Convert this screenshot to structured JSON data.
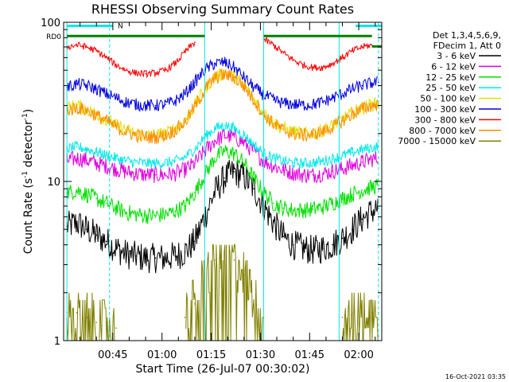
{
  "chart_data": {
    "type": "line",
    "title": "RHESSI Observing Summary Count Rates",
    "xlabel": "Start Time (26-Jul-07 00:30:02)",
    "ylabel_main": "Count Rate (s",
    "ylabel_sup": "-1",
    "ylabel_rest": " detector",
    "ylabel_sup2": "-1",
    "ylabel_close": ")",
    "y_scale": "log",
    "ylim": [
      1,
      100
    ],
    "y_ticks": [
      {
        "value": 1,
        "label": "1"
      },
      {
        "value": 10,
        "label": "10"
      },
      {
        "value": 100,
        "label": "100"
      }
    ],
    "xlim_minutes": [
      30.0,
      127.0
    ],
    "x_ticks": [
      {
        "value": 45,
        "label": "00:45"
      },
      {
        "value": 60,
        "label": "01:00"
      },
      {
        "value": 75,
        "label": "01:15"
      },
      {
        "value": 90,
        "label": "01:30"
      },
      {
        "value": 105,
        "label": "01:45"
      },
      {
        "value": 120,
        "label": "02:00"
      }
    ],
    "legend": {
      "header": [
        "Det 1,3,4,5,6,9,",
        "FDecim 1, Att 0"
      ],
      "position": "right"
    },
    "series": [
      {
        "name": "3 - 6 keV",
        "color": "#000000",
        "x": [
          31,
          34,
          37,
          40,
          43,
          46,
          49,
          52,
          55,
          58,
          61,
          64,
          67,
          70,
          73,
          76,
          79,
          82,
          85,
          88,
          91,
          94,
          97,
          100,
          103,
          106,
          109,
          112,
          115,
          118,
          121,
          124,
          126
        ],
        "y": [
          5.2,
          5.5,
          5.0,
          4.6,
          4.2,
          3.8,
          3.5,
          3.4,
          3.3,
          3.3,
          3.3,
          3.4,
          3.6,
          4.2,
          6.0,
          8.5,
          10.5,
          11.5,
          10.8,
          9.0,
          7.0,
          5.5,
          4.5,
          4.0,
          3.8,
          3.7,
          3.8,
          4.0,
          4.4,
          5.0,
          5.8,
          6.5,
          6.8
        ]
      },
      {
        "name": "6 - 12 keV",
        "color": "#e000e0",
        "x": [
          31,
          34,
          37,
          40,
          43,
          46,
          49,
          52,
          55,
          58,
          61,
          64,
          67,
          70,
          73,
          76,
          79,
          82,
          85,
          88,
          91,
          94,
          97,
          100,
          103,
          106,
          109,
          112,
          115,
          118,
          121,
          124,
          126
        ],
        "y": [
          13.5,
          14.0,
          13.6,
          13.0,
          12.5,
          12.0,
          11.5,
          11.2,
          11.0,
          11.0,
          11.0,
          11.2,
          11.8,
          13.0,
          15.5,
          18.0,
          19.5,
          19.0,
          17.5,
          15.5,
          13.5,
          12.5,
          11.8,
          11.3,
          11.0,
          11.0,
          11.2,
          11.6,
          12.0,
          12.6,
          13.2,
          13.8,
          14.0
        ]
      },
      {
        "name": "12 - 25 keV",
        "color": "#00e000",
        "x": [
          31,
          34,
          37,
          40,
          43,
          46,
          49,
          52,
          55,
          58,
          61,
          64,
          67,
          70,
          73,
          76,
          79,
          82,
          85,
          88,
          91,
          94,
          97,
          100,
          103,
          106,
          109,
          112,
          115,
          118,
          121,
          124,
          126
        ],
        "y": [
          8.5,
          8.8,
          8.3,
          7.8,
          7.3,
          6.8,
          6.4,
          6.2,
          6.1,
          6.1,
          6.2,
          6.5,
          7.0,
          8.5,
          11.0,
          14.0,
          15.5,
          15.0,
          13.0,
          10.5,
          8.5,
          7.3,
          6.8,
          6.6,
          6.6,
          6.7,
          6.9,
          7.3,
          7.8,
          8.3,
          8.8,
          9.2,
          9.4
        ]
      },
      {
        "name": "25 - 50 keV",
        "color": "#00e8e8",
        "x": [
          31,
          34,
          37,
          40,
          43,
          46,
          49,
          52,
          55,
          58,
          61,
          64,
          67,
          70,
          73,
          76,
          79,
          82,
          85,
          88,
          91,
          94,
          97,
          100,
          103,
          106,
          109,
          112,
          115,
          118,
          121,
          124,
          126
        ],
        "y": [
          16.0,
          16.5,
          16.0,
          15.3,
          14.6,
          14.0,
          13.5,
          13.2,
          13.0,
          13.0,
          13.1,
          13.4,
          14.2,
          16.0,
          19.0,
          21.5,
          22.5,
          21.5,
          19.5,
          17.0,
          15.0,
          14.0,
          13.4,
          13.1,
          13.0,
          13.1,
          13.4,
          13.9,
          14.5,
          15.2,
          15.8,
          16.3,
          16.6
        ]
      },
      {
        "name": "50 - 100 keV",
        "color": "#e0e000",
        "x": [
          31,
          34,
          37,
          40,
          43,
          46,
          49,
          52,
          55,
          58,
          61,
          64,
          67,
          70,
          73,
          76,
          79,
          82,
          85,
          88,
          91,
          94,
          97,
          100,
          103,
          106,
          109,
          112,
          115,
          118,
          121,
          124,
          126
        ],
        "y": [
          29.0,
          30.0,
          28.5,
          26.5,
          24.5,
          22.5,
          21.0,
          20.0,
          19.5,
          19.5,
          20.0,
          21.5,
          24.0,
          30.0,
          38.0,
          45.0,
          48.0,
          46.0,
          40.0,
          33.0,
          27.0,
          23.5,
          21.5,
          20.5,
          20.0,
          20.2,
          21.0,
          22.5,
          24.5,
          27.0,
          29.0,
          30.5,
          31.0
        ]
      },
      {
        "name": "100 - 300 keV",
        "color": "#0000e0",
        "x": [
          31,
          34,
          37,
          40,
          43,
          46,
          49,
          52,
          55,
          58,
          61,
          64,
          67,
          70,
          73,
          76,
          79,
          82,
          85,
          88,
          91,
          94,
          97,
          100,
          103,
          106,
          109,
          112,
          115,
          118,
          121,
          124,
          126
        ],
        "y": [
          39.0,
          41.0,
          40.0,
          38.0,
          35.5,
          33.5,
          31.5,
          30.5,
          30.0,
          30.0,
          30.5,
          32.0,
          35.5,
          42.0,
          50.0,
          55.0,
          56.0,
          52.0,
          45.0,
          39.0,
          35.0,
          32.5,
          31.0,
          30.5,
          30.2,
          30.5,
          31.5,
          33.5,
          35.5,
          38.0,
          40.0,
          41.5,
          42.0
        ]
      },
      {
        "name": "300 - 800 keV",
        "color": "#ff0000",
        "x": [
          31,
          34,
          37,
          40,
          43,
          46,
          49,
          52,
          55,
          58,
          61,
          64,
          67,
          70,
          73,
          76,
          79,
          82,
          85,
          88,
          91,
          94,
          97,
          100,
          103,
          106,
          109,
          112,
          115,
          118,
          121,
          124,
          126
        ],
        "y": [
          70,
          72,
          70,
          66,
          60,
          54,
          50,
          48,
          47.5,
          48,
          50,
          55,
          65,
          75,
          null,
          null,
          null,
          null,
          null,
          null,
          78,
          72,
          64,
          58,
          54,
          52,
          52,
          55,
          60,
          66,
          70,
          72,
          null
        ]
      },
      {
        "name": "800 - 7000 keV",
        "color": "#ff8c00",
        "x": [
          31,
          34,
          37,
          40,
          43,
          46,
          49,
          52,
          55,
          58,
          61,
          64,
          67,
          70,
          73,
          76,
          79,
          82,
          85,
          88,
          91,
          94,
          97,
          100,
          103,
          106,
          109,
          112,
          115,
          118,
          121,
          124,
          126
        ],
        "y": [
          28.0,
          29.0,
          28.0,
          26.0,
          24.0,
          22.0,
          20.5,
          19.5,
          19.0,
          19.0,
          19.5,
          21.0,
          23.5,
          29.5,
          37.5,
          44.5,
          47.0,
          45.0,
          39.5,
          32.5,
          26.5,
          23.0,
          21.0,
          20.0,
          19.5,
          19.8,
          20.5,
          22.0,
          24.0,
          26.5,
          28.5,
          30.0,
          30.5
        ]
      },
      {
        "name": "7000 - 15000 keV",
        "color": "#808000",
        "x": [
          31,
          34,
          37,
          40,
          43,
          46,
          49,
          52,
          55,
          58,
          61,
          64,
          67,
          70,
          73,
          76,
          79,
          82,
          85,
          88,
          91,
          94,
          97,
          100,
          103,
          106,
          109,
          112,
          115,
          118,
          121,
          124,
          126
        ],
        "y": [
          1.5,
          1.5,
          1.4,
          1.3,
          1.3,
          1.2,
          null,
          null,
          null,
          null,
          null,
          null,
          1.4,
          1.7,
          2.4,
          3.2,
          3.6,
          3.2,
          2.6,
          1.8,
          1.4,
          null,
          null,
          null,
          null,
          null,
          null,
          null,
          1.4,
          1.5,
          1.5,
          1.5,
          1.5
        ]
      }
    ],
    "annotations": {
      "rd_label": "RD0",
      "n_label": "N",
      "rd_level": 82,
      "n_level": 95,
      "rd_segments_minutes": [
        [
          31,
          73
        ],
        [
          91,
          124
        ]
      ],
      "n_segments_minutes": [
        [
          31,
          45
        ]
      ],
      "n_segments2_minutes": [
        [
          119,
          127
        ]
      ],
      "rd_right_segments_minutes": [
        [
          124,
          127
        ]
      ],
      "eclipse_solid_minutes": [
        31,
        73,
        91,
        114
      ],
      "eclipse_dashed_minutes": [
        44,
        126
      ]
    },
    "timestamp": "16-Oct-2021 03:35"
  }
}
